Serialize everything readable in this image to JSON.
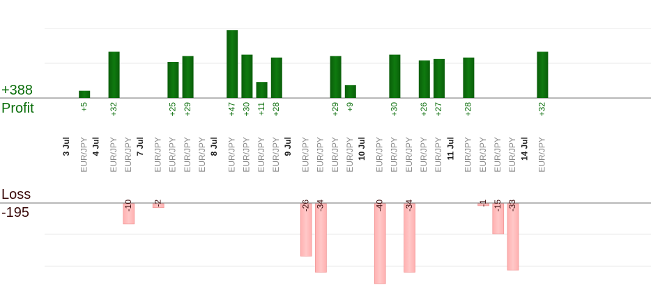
{
  "chart_data": {
    "type": "bar",
    "summary": {
      "profit_total": "+388",
      "profit_label": "Profit",
      "loss_label": "Loss",
      "loss_total": "-195"
    },
    "colors": {
      "profit": "#0a6b0a",
      "loss": "#ffb3b3",
      "profit_text": "#0b6e0b",
      "loss_text": "#3a0a0a"
    },
    "groups": [
      {
        "date": "3 Jul",
        "bars": [
          {
            "pair": "EUR/JPY",
            "value": 5
          }
        ]
      },
      {
        "date": "4 Jul",
        "bars": [
          {
            "pair": "EUR/JPY",
            "value": 32
          },
          {
            "pair": "EUR/JPY",
            "value": -10
          }
        ]
      },
      {
        "date": "7 Jul",
        "bars": [
          {
            "pair": "EUR/JPY",
            "value": -2
          },
          {
            "pair": "EUR/JPY",
            "value": 25
          },
          {
            "pair": "EUR/JPY",
            "value": 29
          },
          {
            "pair": "EUR/JPY",
            "value": 0
          }
        ]
      },
      {
        "date": "8 Jul",
        "bars": [
          {
            "pair": "EUR/JPY",
            "value": 47
          },
          {
            "pair": "EUR/JPY",
            "value": 30
          },
          {
            "pair": "EUR/JPY",
            "value": 11
          },
          {
            "pair": "EUR/JPY",
            "value": 28
          }
        ]
      },
      {
        "date": "9 Jul",
        "bars": [
          {
            "pair": "EUR/JPY",
            "value": -26
          },
          {
            "pair": "EUR/JPY",
            "value": -34
          },
          {
            "pair": "EUR/JPY",
            "value": 29
          },
          {
            "pair": "EUR/JPY",
            "value": 9
          }
        ]
      },
      {
        "date": "10 Jul",
        "bars": [
          {
            "pair": "EUR/JPY",
            "value": -40
          },
          {
            "pair": "EUR/JPY",
            "value": 30
          },
          {
            "pair": "EUR/JPY",
            "value": -34
          },
          {
            "pair": "EUR/JPY",
            "value": 26
          },
          {
            "pair": "EUR/JPY",
            "value": 27
          }
        ]
      },
      {
        "date": "11 Jul",
        "bars": [
          {
            "pair": "EUR/JPY",
            "value": 28
          },
          {
            "pair": "EUR/JPY",
            "value": -1
          },
          {
            "pair": "EUR/JPY",
            "value": -15
          },
          {
            "pair": "EUR/JPY",
            "value": -33
          }
        ]
      },
      {
        "date": "14 Jul",
        "bars": [
          {
            "pair": "EUR/JPY",
            "value": 32
          }
        ]
      }
    ]
  }
}
